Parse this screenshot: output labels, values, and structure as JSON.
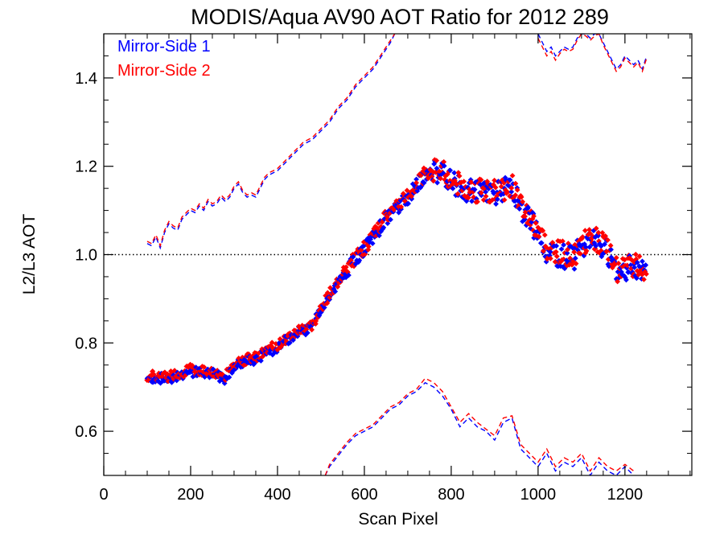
{
  "chart_data": {
    "type": "scatter",
    "title": "MODIS/Aqua AV90 AOT Ratio for 2012 289",
    "xlabel": "Scan Pixel",
    "ylabel": "L2/L3 AOT",
    "xlim": [
      0,
      1354
    ],
    "ylim": [
      0.5,
      1.5
    ],
    "x_ticks": [
      0,
      200,
      400,
      600,
      800,
      1000,
      1200
    ],
    "x_minor_step": 50,
    "y_ticks": [
      0.6,
      0.8,
      1.0,
      1.2,
      1.4
    ],
    "y_minor_step": 0.05,
    "reference_line": 1.0,
    "legend_position": "top-left",
    "series": [
      {
        "name": "Mirror-Side 1",
        "color": "#0000ff",
        "marker": "diamond",
        "x": [
          100,
          150,
          200,
          250,
          280,
          300,
          350,
          400,
          450,
          480,
          500,
          550,
          580,
          600,
          650,
          700,
          740,
          760,
          780,
          800,
          850,
          900,
          940,
          960,
          980,
          1000,
          1020,
          1050,
          1080,
          1100,
          1130,
          1150,
          1170,
          1180,
          1200,
          1230,
          1250
        ],
        "y": [
          0.72,
          0.72,
          0.735,
          0.73,
          0.72,
          0.75,
          0.765,
          0.79,
          0.825,
          0.835,
          0.875,
          0.95,
          0.99,
          1.01,
          1.08,
          1.13,
          1.18,
          1.185,
          1.19,
          1.16,
          1.14,
          1.14,
          1.15,
          1.11,
          1.08,
          1.05,
          1.01,
          1.0,
          0.99,
          1.02,
          1.03,
          1.02,
          0.99,
          0.96,
          0.97,
          0.97,
          0.96
        ],
        "upper_bound": {
          "x": [
            100,
            110,
            120,
            130,
            140,
            150,
            160,
            170,
            180,
            190,
            200,
            210,
            220,
            230,
            240,
            250,
            260,
            270,
            280,
            290,
            300,
            310,
            320,
            330,
            340,
            350,
            360,
            370,
            380,
            390,
            400,
            420,
            440,
            460,
            480,
            500,
            520,
            540,
            560,
            580,
            600,
            620,
            640,
            660,
            670
          ],
          "y": [
            1.025,
            1.02,
            1.04,
            1.015,
            1.05,
            1.07,
            1.06,
            1.055,
            1.08,
            1.09,
            1.1,
            1.095,
            1.11,
            1.1,
            1.12,
            1.11,
            1.115,
            1.13,
            1.12,
            1.13,
            1.15,
            1.16,
            1.14,
            1.13,
            1.135,
            1.13,
            1.15,
            1.17,
            1.18,
            1.185,
            1.19,
            1.21,
            1.23,
            1.25,
            1.26,
            1.28,
            1.3,
            1.33,
            1.35,
            1.38,
            1.4,
            1.42,
            1.45,
            1.48,
            1.5
          ]
        },
        "upper_bound_2": {
          "x": [
            1000,
            1010,
            1020,
            1030,
            1040,
            1050,
            1060,
            1070,
            1080,
            1090,
            1100,
            1110,
            1120,
            1130,
            1140,
            1150,
            1160,
            1170,
            1180,
            1190,
            1200,
            1210,
            1220,
            1230,
            1240,
            1250
          ],
          "y": [
            1.5,
            1.48,
            1.46,
            1.47,
            1.45,
            1.46,
            1.47,
            1.465,
            1.47,
            1.49,
            1.5,
            1.5,
            1.49,
            1.5,
            1.5,
            1.48,
            1.46,
            1.44,
            1.42,
            1.43,
            1.45,
            1.44,
            1.43,
            1.44,
            1.42,
            1.45
          ]
        },
        "lower_bound": {
          "x": [
            510,
            520,
            540,
            560,
            580,
            600,
            620,
            640,
            660,
            680,
            700,
            720,
            740,
            760,
            780,
            800,
            820,
            840,
            860,
            880,
            900,
            920,
            940,
            960,
            980,
            1000,
            1020,
            1040,
            1060,
            1080,
            1100,
            1120,
            1140,
            1160,
            1180,
            1200,
            1220
          ],
          "y": [
            0.5,
            0.52,
            0.545,
            0.57,
            0.59,
            0.6,
            0.61,
            0.63,
            0.65,
            0.66,
            0.68,
            0.69,
            0.71,
            0.7,
            0.68,
            0.65,
            0.61,
            0.63,
            0.61,
            0.6,
            0.58,
            0.62,
            0.63,
            0.56,
            0.54,
            0.52,
            0.55,
            0.51,
            0.53,
            0.52,
            0.54,
            0.5,
            0.53,
            0.51,
            0.5,
            0.52,
            0.5
          ]
        }
      },
      {
        "name": "Mirror-Side 2",
        "color": "#ff0000",
        "marker": "diamond",
        "x": [
          100,
          150,
          200,
          250,
          280,
          300,
          350,
          400,
          450,
          480,
          500,
          550,
          580,
          600,
          650,
          700,
          740,
          760,
          780,
          800,
          850,
          900,
          940,
          960,
          980,
          1000,
          1020,
          1050,
          1080,
          1100,
          1130,
          1150,
          1170,
          1180,
          1200,
          1230,
          1250
        ],
        "y": [
          0.725,
          0.725,
          0.74,
          0.735,
          0.725,
          0.755,
          0.77,
          0.795,
          0.83,
          0.84,
          0.88,
          0.955,
          0.995,
          1.015,
          1.085,
          1.135,
          1.185,
          1.19,
          1.195,
          1.165,
          1.145,
          1.145,
          1.155,
          1.115,
          1.085,
          1.055,
          1.015,
          1.005,
          0.995,
          1.025,
          1.035,
          1.025,
          0.995,
          0.965,
          0.975,
          0.975,
          0.965
        ],
        "upper_bound": {
          "x": [
            100,
            110,
            120,
            130,
            140,
            150,
            160,
            170,
            180,
            190,
            200,
            210,
            220,
            230,
            240,
            250,
            260,
            270,
            280,
            290,
            300,
            310,
            320,
            330,
            340,
            350,
            360,
            370,
            380,
            390,
            400,
            420,
            440,
            460,
            480,
            500,
            520,
            540,
            560,
            580,
            600,
            620,
            640,
            660,
            670
          ],
          "y": [
            1.03,
            1.025,
            1.045,
            1.02,
            1.055,
            1.075,
            1.065,
            1.06,
            1.085,
            1.095,
            1.105,
            1.1,
            1.115,
            1.105,
            1.125,
            1.115,
            1.12,
            1.135,
            1.125,
            1.135,
            1.155,
            1.165,
            1.145,
            1.135,
            1.14,
            1.135,
            1.155,
            1.175,
            1.185,
            1.19,
            1.195,
            1.215,
            1.235,
            1.255,
            1.265,
            1.285,
            1.305,
            1.335,
            1.355,
            1.385,
            1.405,
            1.425,
            1.455,
            1.485,
            1.5
          ]
        },
        "upper_bound_2": {
          "x": [
            1000,
            1010,
            1020,
            1030,
            1040,
            1050,
            1060,
            1070,
            1080,
            1090,
            1100,
            1110,
            1120,
            1130,
            1140,
            1150,
            1160,
            1170,
            1180,
            1190,
            1200,
            1210,
            1220,
            1230,
            1240,
            1250
          ],
          "y": [
            1.49,
            1.47,
            1.45,
            1.46,
            1.44,
            1.455,
            1.465,
            1.46,
            1.465,
            1.485,
            1.5,
            1.495,
            1.485,
            1.495,
            1.5,
            1.475,
            1.455,
            1.435,
            1.415,
            1.425,
            1.445,
            1.435,
            1.425,
            1.435,
            1.415,
            1.445
          ]
        },
        "lower_bound": {
          "x": [
            510,
            520,
            540,
            560,
            580,
            600,
            620,
            640,
            660,
            680,
            700,
            720,
            740,
            760,
            780,
            800,
            820,
            840,
            860,
            880,
            900,
            920,
            940,
            960,
            980,
            1000,
            1020,
            1040,
            1060,
            1080,
            1100,
            1120,
            1140,
            1160,
            1180,
            1200,
            1220
          ],
          "y": [
            0.5,
            0.525,
            0.55,
            0.575,
            0.595,
            0.605,
            0.615,
            0.635,
            0.655,
            0.665,
            0.685,
            0.695,
            0.72,
            0.71,
            0.69,
            0.655,
            0.62,
            0.64,
            0.62,
            0.605,
            0.59,
            0.63,
            0.635,
            0.57,
            0.55,
            0.53,
            0.56,
            0.52,
            0.54,
            0.53,
            0.55,
            0.51,
            0.54,
            0.52,
            0.51,
            0.525,
            0.51
          ]
        }
      }
    ]
  }
}
